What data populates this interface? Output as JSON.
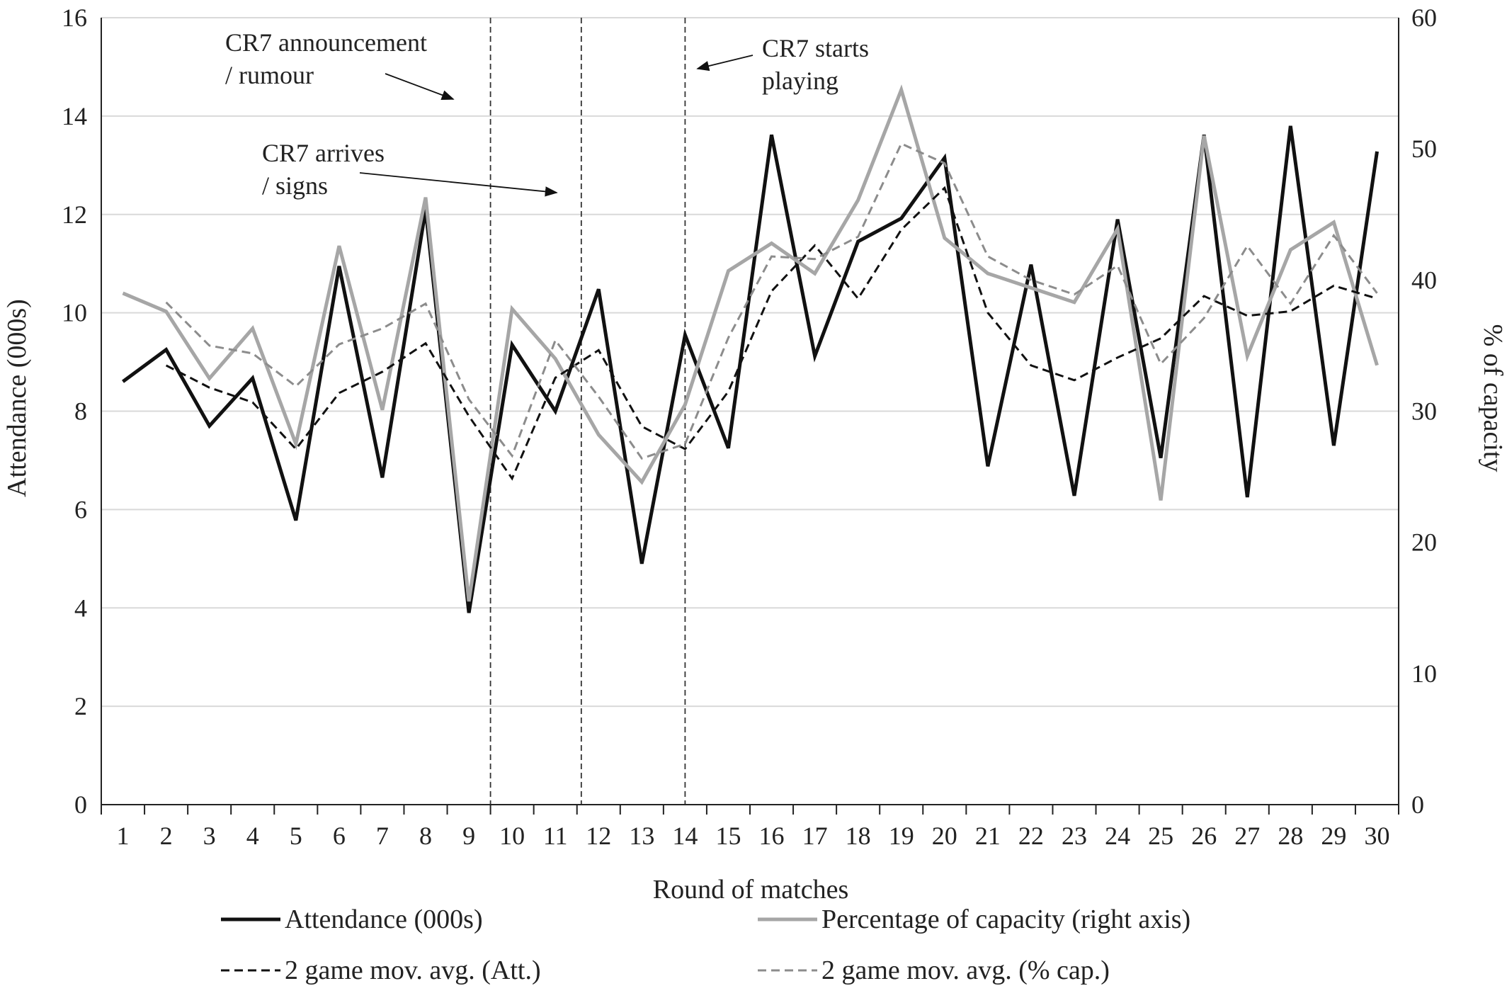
{
  "chart_data": {
    "type": "line",
    "xlabel": "Round of matches",
    "ylabel": "Attendance (000s)",
    "y2label": "% of capacity",
    "x": [
      1,
      2,
      3,
      4,
      5,
      6,
      7,
      8,
      9,
      10,
      11,
      12,
      13,
      14,
      15,
      16,
      17,
      18,
      19,
      20,
      21,
      22,
      23,
      24,
      25,
      26,
      27,
      28,
      29,
      30
    ],
    "ylim": [
      0,
      16
    ],
    "yticks": [
      0,
      2,
      4,
      6,
      8,
      10,
      12,
      14,
      16
    ],
    "y2lim": [
      0,
      60
    ],
    "y2ticks": [
      0,
      10,
      20,
      30,
      40,
      50,
      60
    ],
    "grid": "horizontal",
    "legend_position": "bottom",
    "series": [
      {
        "name": "Attendance (000s)",
        "axis": "left",
        "color": "#111111",
        "style": "solid",
        "values": [
          8.6,
          9.25,
          7.7,
          8.67,
          5.78,
          10.95,
          6.65,
          12.1,
          3.9,
          9.35,
          8.0,
          10.48,
          4.9,
          9.55,
          7.25,
          13.62,
          9.12,
          11.45,
          11.92,
          13.15,
          6.88,
          10.98,
          6.28,
          11.9,
          7.05,
          13.62,
          6.25,
          13.8,
          7.3,
          13.28
        ]
      },
      {
        "name": "Percentage of capacity (right axis)",
        "axis": "right",
        "color": "#a6a6a6",
        "style": "solid",
        "values": [
          39.0,
          37.6,
          32.5,
          36.3,
          27.5,
          42.6,
          30.1,
          46.3,
          15.5,
          37.8,
          34.0,
          28.2,
          24.6,
          30.5,
          40.7,
          42.8,
          40.5,
          46.1,
          54.5,
          43.2,
          40.5,
          39.4,
          38.3,
          43.9,
          23.2,
          51.0,
          34.2,
          42.3,
          44.4,
          33.5
        ]
      },
      {
        "name": "2 game mov. avg. (Att.)",
        "axis": "left",
        "color": "#111111",
        "style": "dashed",
        "values": [
          null,
          8.93,
          8.48,
          8.18,
          7.23,
          8.37,
          8.8,
          9.38,
          7.9,
          6.63,
          8.68,
          9.24,
          7.69,
          7.23,
          8.4,
          10.44,
          11.37,
          10.29,
          11.69,
          12.54,
          10.0,
          8.93,
          8.63,
          9.09,
          9.48,
          10.34,
          9.94,
          10.03,
          10.55,
          10.29
        ]
      },
      {
        "name": "2 game mov. avg. (% cap.)",
        "axis": "right",
        "color": "#8c8c8c",
        "style": "dashed",
        "values": [
          null,
          38.3,
          35.0,
          34.4,
          31.9,
          35.1,
          36.3,
          38.2,
          30.9,
          26.6,
          35.4,
          31.1,
          26.4,
          27.5,
          35.6,
          41.8,
          41.6,
          43.3,
          50.4,
          48.9,
          41.8,
          40.0,
          38.9,
          41.1,
          33.6,
          37.1,
          42.6,
          38.2,
          43.4,
          39.0
        ]
      }
    ],
    "annotations": [
      {
        "text_lines": [
          "CR7 announcement",
          "/ rumour"
        ],
        "at_round": 9.5
      },
      {
        "text_lines": [
          "CR7 arrives",
          "/ signs"
        ],
        "at_round": 11.6
      },
      {
        "text_lines": [
          "CR7 starts",
          "playing"
        ],
        "at_round": 14.0
      }
    ]
  }
}
